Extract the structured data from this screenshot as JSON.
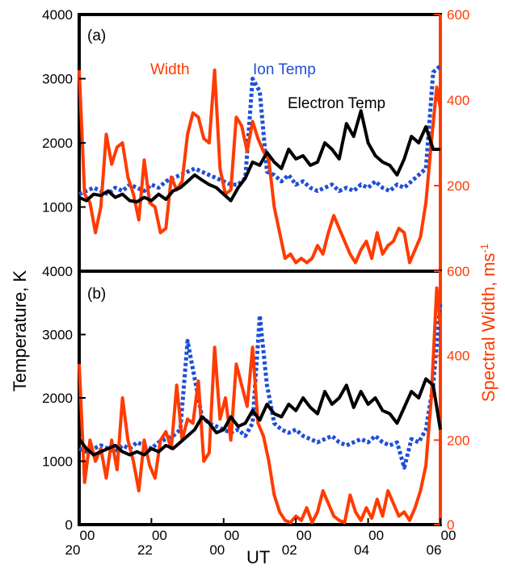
{
  "chart_data": {
    "type": "line",
    "colors": {
      "electron": "#000000",
      "ion": "#1f4fd6",
      "width": "#ff3b00"
    },
    "xlabel": "UT",
    "x_range": [
      0,
      10
    ],
    "x_ticks": [
      {
        "x": 0,
        "label": "20",
        "sup": "00"
      },
      {
        "x": 2,
        "label": "22",
        "sup": "00"
      },
      {
        "x": 4,
        "label": "00",
        "sup": "00"
      },
      {
        "x": 6,
        "label": "02",
        "sup": "00"
      },
      {
        "x": 8,
        "label": "04",
        "sup": "00"
      },
      {
        "x": 10,
        "label": "06",
        "sup": "00"
      }
    ],
    "ylabel_left": "Temperature, K",
    "ylabel_right": "Spectral Width, ms",
    "ylabel_right_sup": "-1",
    "panels": [
      {
        "label": "(a)",
        "ylim_left": [
          0,
          4000
        ],
        "ylim_right": [
          0,
          600
        ],
        "left_ticks": [
          "1000",
          "2000",
          "3000",
          "4000"
        ],
        "right_ticks": [
          "200",
          "400",
          "600"
        ],
        "legend": {
          "width": "Width",
          "ion": "Ion Temp",
          "electron": "Electron Temp"
        },
        "series": [
          {
            "name": "Electron Temp",
            "key": "electron",
            "x": [
              0,
              0.2,
              0.4,
              0.6,
              0.8,
              1.0,
              1.2,
              1.4,
              1.6,
              1.8,
              2.0,
              2.2,
              2.4,
              2.6,
              2.8,
              3.0,
              3.2,
              3.4,
              3.6,
              3.8,
              4.0,
              4.2,
              4.4,
              4.6,
              4.8,
              5.0,
              5.2,
              5.4,
              5.6,
              5.8,
              6.0,
              6.2,
              6.4,
              6.6,
              6.8,
              7.0,
              7.2,
              7.4,
              7.6,
              7.8,
              8.0,
              8.2,
              8.4,
              8.6,
              8.8,
              9.0,
              9.2,
              9.4,
              9.6,
              9.8,
              10.0
            ],
            "y": [
              1150,
              1100,
              1200,
              1180,
              1250,
              1150,
              1200,
              1100,
              1080,
              1150,
              1100,
              1200,
              1120,
              1250,
              1300,
              1400,
              1500,
              1420,
              1350,
              1300,
              1200,
              1100,
              1300,
              1450,
              1700,
              1650,
              1850,
              1700,
              1600,
              1900,
              1750,
              1800,
              1650,
              1700,
              2000,
              1900,
              1750,
              2300,
              2100,
              2500,
              2000,
              1800,
              1700,
              1650,
              1500,
              1750,
              2100,
              2000,
              2250,
              1900,
              1900
            ]
          },
          {
            "name": "Ion Temp",
            "key": "ion",
            "x": [
              0,
              0.2,
              0.4,
              0.6,
              0.8,
              1.0,
              1.2,
              1.4,
              1.6,
              1.8,
              2.0,
              2.2,
              2.4,
              2.6,
              2.8,
              3.0,
              3.2,
              3.4,
              3.6,
              3.8,
              4.0,
              4.2,
              4.4,
              4.6,
              4.8,
              5.0,
              5.2,
              5.4,
              5.6,
              5.8,
              6.0,
              6.2,
              6.4,
              6.6,
              6.8,
              7.0,
              7.2,
              7.4,
              7.6,
              7.8,
              8.0,
              8.2,
              8.4,
              8.6,
              8.8,
              9.0,
              9.2,
              9.4,
              9.6,
              9.8,
              10.0
            ],
            "y": [
              1200,
              1250,
              1300,
              1250,
              1200,
              1300,
              1250,
              1350,
              1300,
              1250,
              1350,
              1300,
              1400,
              1450,
              1500,
              1550,
              1600,
              1550,
              1500,
              1450,
              1400,
              1350,
              1350,
              1450,
              3000,
              2800,
              1550,
              1500,
              1400,
              1500,
              1350,
              1400,
              1300,
              1250,
              1300,
              1350,
              1250,
              1300,
              1250,
              1350,
              1300,
              1400,
              1300,
              1250,
              1350,
              1300,
              1400,
              1500,
              1600,
              3100,
              3200
            ]
          },
          {
            "name": "Width",
            "key": "width",
            "x": [
              0,
              0.15,
              0.3,
              0.45,
              0.6,
              0.75,
              0.9,
              1.05,
              1.2,
              1.35,
              1.5,
              1.65,
              1.8,
              1.95,
              2.1,
              2.25,
              2.4,
              2.55,
              2.7,
              2.85,
              3.0,
              3.15,
              3.3,
              3.45,
              3.6,
              3.75,
              3.9,
              4.05,
              4.2,
              4.35,
              4.5,
              4.65,
              4.8,
              4.95,
              5.1,
              5.25,
              5.4,
              5.55,
              5.7,
              5.85,
              6.0,
              6.15,
              6.3,
              6.45,
              6.6,
              6.75,
              6.9,
              7.05,
              7.2,
              7.35,
              7.5,
              7.65,
              7.8,
              7.95,
              8.1,
              8.25,
              8.4,
              8.55,
              8.7,
              8.85,
              9.0,
              9.15,
              9.3,
              9.45,
              9.6,
              9.75,
              9.9,
              10.0
            ],
            "y": [
              470,
              180,
              160,
              90,
              150,
              320,
              250,
              290,
              300,
              220,
              180,
              120,
              260,
              160,
              150,
              90,
              100,
              220,
              190,
              210,
              320,
              370,
              360,
              310,
              300,
              470,
              240,
              180,
              190,
              360,
              340,
              280,
              350,
              310,
              280,
              260,
              150,
              90,
              30,
              40,
              20,
              30,
              20,
              30,
              60,
              40,
              90,
              130,
              100,
              70,
              40,
              20,
              50,
              70,
              30,
              90,
              40,
              60,
              70,
              100,
              90,
              20,
              50,
              80,
              160,
              300,
              430,
              380
            ]
          }
        ]
      },
      {
        "label": "(b)",
        "ylim_left": [
          0,
          4000
        ],
        "ylim_right": [
          0,
          600
        ],
        "left_ticks": [
          "0",
          "1000",
          "2000",
          "3000",
          "4000"
        ],
        "right_ticks": [
          "0",
          "200",
          "400",
          "600"
        ],
        "series": [
          {
            "name": "Electron Temp",
            "key": "electron",
            "x": [
              0,
              0.2,
              0.4,
              0.6,
              0.8,
              1.0,
              1.2,
              1.4,
              1.6,
              1.8,
              2.0,
              2.2,
              2.4,
              2.6,
              2.8,
              3.0,
              3.2,
              3.4,
              3.6,
              3.8,
              4.0,
              4.2,
              4.4,
              4.6,
              4.8,
              5.0,
              5.2,
              5.4,
              5.6,
              5.8,
              6.0,
              6.2,
              6.4,
              6.6,
              6.8,
              7.0,
              7.2,
              7.4,
              7.6,
              7.8,
              8.0,
              8.2,
              8.4,
              8.6,
              8.8,
              9.0,
              9.2,
              9.4,
              9.6,
              9.8,
              10.0
            ],
            "y": [
              1350,
              1200,
              1100,
              1150,
              1200,
              1250,
              1150,
              1100,
              1150,
              1100,
              1200,
              1150,
              1250,
              1200,
              1300,
              1400,
              1500,
              1700,
              1600,
              1450,
              1500,
              1700,
              1550,
              1600,
              1800,
              1650,
              1900,
              1750,
              1700,
              1900,
              1800,
              2000,
              1850,
              1750,
              2100,
              1900,
              2000,
              2200,
              1850,
              2100,
              1900,
              2000,
              1800,
              1750,
              1600,
              1850,
              2100,
              2000,
              2300,
              2200,
              1500
            ]
          },
          {
            "name": "Ion Temp",
            "key": "ion",
            "x": [
              0,
              0.2,
              0.4,
              0.6,
              0.8,
              1.0,
              1.2,
              1.4,
              1.6,
              1.8,
              2.0,
              2.2,
              2.4,
              2.6,
              2.8,
              3.0,
              3.2,
              3.4,
              3.6,
              3.8,
              4.0,
              4.2,
              4.4,
              4.6,
              4.8,
              5.0,
              5.2,
              5.4,
              5.6,
              5.8,
              6.0,
              6.2,
              6.4,
              6.6,
              6.8,
              7.0,
              7.2,
              7.4,
              7.6,
              7.8,
              8.0,
              8.2,
              8.4,
              8.6,
              8.8,
              9.0,
              9.2,
              9.4,
              9.6,
              9.8,
              10.0
            ],
            "y": [
              1200,
              1150,
              1200,
              1250,
              1200,
              1150,
              1250,
              1200,
              1300,
              1250,
              1200,
              1300,
              1350,
              1400,
              1500,
              2900,
              2300,
              1700,
              1600,
              1550,
              1500,
              1450,
              1500,
              1400,
              1600,
              3300,
              2200,
              1600,
              1500,
              1450,
              1500,
              1400,
              1350,
              1300,
              1350,
              1400,
              1300,
              1250,
              1300,
              1350,
              1300,
              1400,
              1300,
              1250,
              1300,
              900,
              1350,
              1300,
              1500,
              2200,
              3500
            ]
          },
          {
            "name": "Width",
            "key": "width",
            "x": [
              0,
              0.15,
              0.3,
              0.45,
              0.6,
              0.75,
              0.9,
              1.05,
              1.2,
              1.35,
              1.5,
              1.65,
              1.8,
              1.95,
              2.1,
              2.25,
              2.4,
              2.55,
              2.7,
              2.85,
              3.0,
              3.15,
              3.3,
              3.45,
              3.6,
              3.75,
              3.9,
              4.05,
              4.2,
              4.35,
              4.5,
              4.65,
              4.8,
              4.95,
              5.1,
              5.25,
              5.4,
              5.55,
              5.7,
              5.85,
              6.0,
              6.15,
              6.3,
              6.45,
              6.6,
              6.75,
              6.9,
              7.05,
              7.2,
              7.35,
              7.5,
              7.65,
              7.8,
              7.95,
              8.1,
              8.25,
              8.4,
              8.55,
              8.7,
              8.85,
              9.0,
              9.15,
              9.3,
              9.45,
              9.6,
              9.75,
              9.9,
              10.0
            ],
            "y": [
              380,
              100,
              200,
              150,
              180,
              110,
              200,
              130,
              300,
              200,
              150,
              80,
              200,
              140,
              110,
              200,
              220,
              180,
              330,
              200,
              250,
              240,
              340,
              150,
              170,
              420,
              250,
              300,
              200,
              380,
              330,
              280,
              420,
              240,
              210,
              150,
              70,
              30,
              10,
              5,
              20,
              10,
              40,
              5,
              30,
              80,
              50,
              20,
              10,
              5,
              70,
              30,
              10,
              40,
              15,
              60,
              20,
              80,
              50,
              20,
              30,
              10,
              40,
              80,
              140,
              300,
              560,
              470
            ]
          }
        ]
      }
    ]
  }
}
